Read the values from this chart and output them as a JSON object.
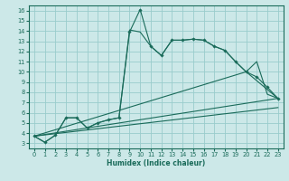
{
  "xlabel": "Humidex (Indice chaleur)",
  "bg_color": "#cce8e8",
  "grid_color": "#99cccc",
  "line_color": "#1a6b5a",
  "xlim": [
    -0.5,
    23.5
  ],
  "ylim": [
    2.5,
    16.5
  ],
  "xticks": [
    0,
    1,
    2,
    3,
    4,
    5,
    6,
    7,
    8,
    9,
    10,
    11,
    12,
    13,
    14,
    15,
    16,
    17,
    18,
    19,
    20,
    21,
    22,
    23
  ],
  "yticks": [
    3,
    4,
    5,
    6,
    7,
    8,
    9,
    10,
    11,
    12,
    13,
    14,
    15,
    16
  ],
  "main_x": [
    0,
    1,
    2,
    3,
    4,
    5,
    6,
    7,
    8,
    9,
    10,
    11,
    12,
    13,
    14,
    15,
    16,
    17,
    18,
    19,
    20,
    21,
    22,
    23
  ],
  "main_y": [
    3.7,
    3.1,
    3.8,
    5.5,
    5.5,
    4.5,
    5.0,
    5.3,
    5.5,
    13.9,
    16.1,
    12.5,
    11.6,
    13.1,
    13.1,
    13.2,
    13.1,
    12.5,
    12.1,
    11.0,
    10.0,
    9.5,
    8.5,
    7.4
  ],
  "curve2_x": [
    0,
    1,
    2,
    3,
    4,
    5,
    6,
    7,
    8,
    9,
    10,
    11,
    12,
    13,
    14,
    15,
    16,
    17,
    18,
    19,
    20,
    21,
    22,
    23
  ],
  "curve2_y": [
    3.7,
    3.1,
    3.8,
    5.5,
    5.5,
    4.5,
    5.0,
    5.3,
    5.5,
    14.1,
    13.9,
    12.5,
    11.6,
    13.1,
    13.1,
    13.2,
    13.1,
    12.5,
    12.1,
    11.0,
    10.0,
    11.0,
    7.8,
    7.4
  ],
  "line1_x": [
    0,
    23
  ],
  "line1_y": [
    3.7,
    7.4
  ],
  "line2_x": [
    0,
    20,
    23
  ],
  "line2_y": [
    3.7,
    10.0,
    7.4
  ],
  "line3_x": [
    0,
    23
  ],
  "line3_y": [
    3.7,
    6.5
  ]
}
